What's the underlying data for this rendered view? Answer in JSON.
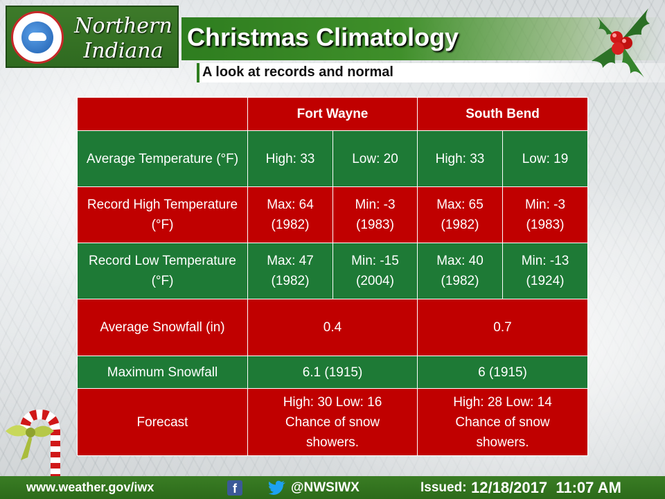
{
  "header": {
    "logo_name": "NATIONAL WEATHER SERVICE",
    "region_line1": "Northern",
    "region_line2": "Indiana",
    "title": "Christmas Climatology",
    "subtitle": "A look at records and normal"
  },
  "table": {
    "columns": [
      "",
      "Fort Wayne",
      "South Bend"
    ],
    "rows": [
      {
        "label": "Average Temperature (°F)",
        "fw_a": "High: 33",
        "fw_b": "Low: 20",
        "sb_a": "High: 33",
        "sb_b": "Low: 19"
      },
      {
        "label": "Record High Temperature (°F)",
        "fw_a": "Max: 64 (1982)",
        "fw_b": "Min: -3 (1983)",
        "sb_a": "Max: 65 (1982)",
        "sb_b": "Min: -3 (1983)"
      },
      {
        "label": "Record Low Temperature (°F)",
        "fw_a": "Max: 47 (1982)",
        "fw_b": "Min: -15 (2004)",
        "sb_a": "Max: 40 (1982)",
        "sb_b": "Min: -13 (1924)"
      },
      {
        "label": "Average Snowfall (in)",
        "fw": "0.4",
        "sb": "0.7"
      },
      {
        "label": "Maximum Snowfall",
        "fw": "6.1 (1915)",
        "sb": "6 (1915)"
      },
      {
        "label": "Forecast",
        "fw": "High: 30 Low: 16 Chance of snow showers.",
        "sb": "High: 28 Low: 14 Chance of snow showers."
      }
    ]
  },
  "footer": {
    "website": "www.weather.gov/iwx",
    "facebook_glyph": "f",
    "twitter_handle": "@NWSIWX",
    "issued_label": "Issued:",
    "issued_value": "12/18/2017  11:07 AM"
  },
  "colors": {
    "red": "#c00000",
    "green": "#1e7a36",
    "banner_green": "#2e7d1f"
  },
  "icons": [
    "nws-seal-icon",
    "holly-icon",
    "candy-cane-icon",
    "facebook-icon",
    "twitter-icon"
  ]
}
